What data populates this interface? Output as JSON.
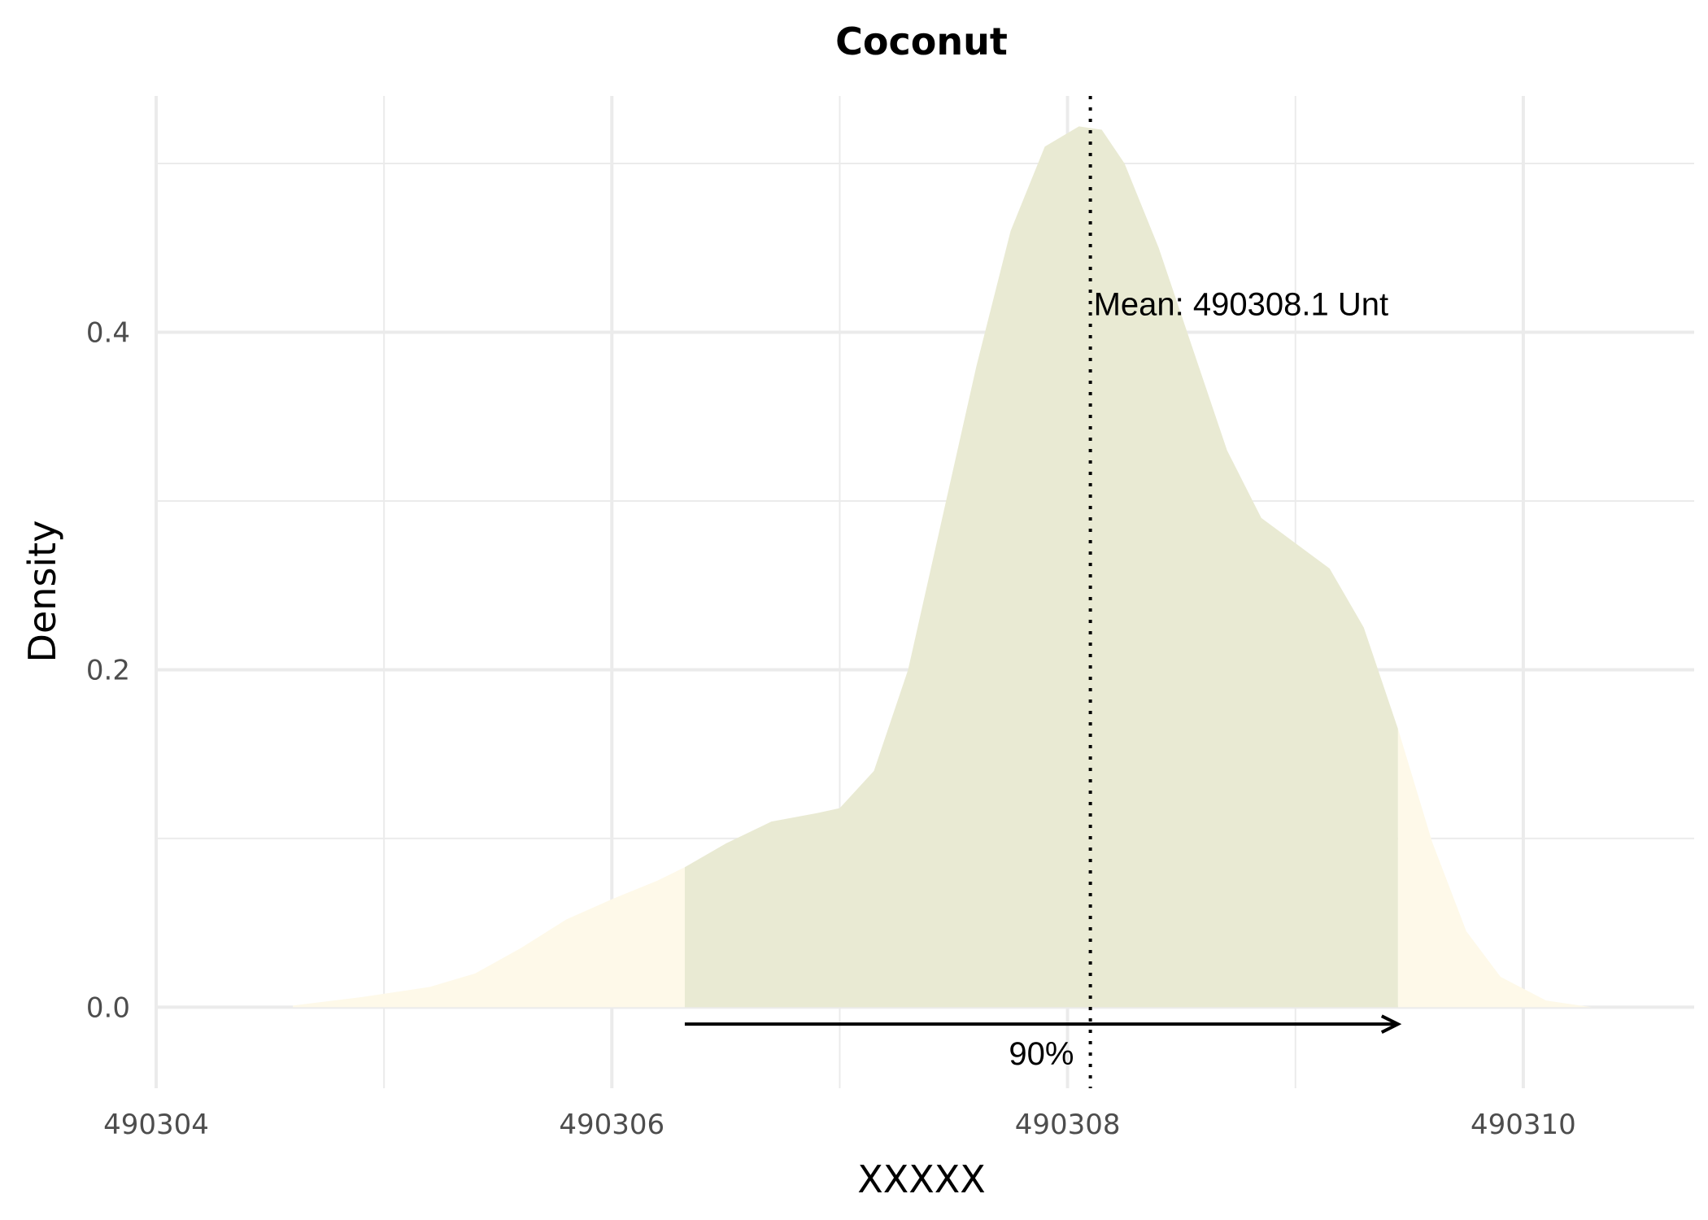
{
  "chart_data": {
    "type": "area",
    "title": "Coconut",
    "xlabel": "XXXXX",
    "ylabel": "Density",
    "xlim": [
      490304,
      490310.75
    ],
    "ylim": [
      -0.048,
      0.54
    ],
    "x_ticks": [
      490304,
      490306,
      490308,
      490310
    ],
    "y_ticks": [
      0.0,
      0.2,
      0.4
    ],
    "grid": true,
    "density_curve": {
      "x": [
        490304.6,
        490304.9,
        490305.2,
        490305.4,
        490305.6,
        490305.8,
        490306.0,
        490306.2,
        490306.32,
        490306.5,
        490306.7,
        490306.9,
        490307.0,
        490307.15,
        490307.3,
        490307.45,
        490307.6,
        490307.75,
        490307.9,
        490308.05,
        490308.15,
        490308.25,
        490308.4,
        490308.55,
        490308.7,
        490308.85,
        490309.0,
        490309.15,
        490309.3,
        490309.45,
        490309.6,
        490309.75,
        490309.9,
        490310.1,
        490310.3
      ],
      "y": [
        0.001,
        0.006,
        0.012,
        0.02,
        0.035,
        0.052,
        0.064,
        0.075,
        0.083,
        0.097,
        0.11,
        0.115,
        0.118,
        0.14,
        0.2,
        0.29,
        0.38,
        0.46,
        0.51,
        0.522,
        0.52,
        0.5,
        0.45,
        0.39,
        0.33,
        0.29,
        0.275,
        0.26,
        0.225,
        0.165,
        0.098,
        0.045,
        0.018,
        0.004,
        0.0
      ]
    },
    "interval": {
      "low": 490306.32,
      "high": 490309.45,
      "label": "90%"
    },
    "mean": {
      "value": 490308.1,
      "label": "Mean: 490308.1 Unt"
    },
    "colors": {
      "tail_fill": "#fef9e9",
      "interval_fill": "#e9ead3",
      "grid": "#ebebeb",
      "mean_line": "#000000"
    }
  }
}
